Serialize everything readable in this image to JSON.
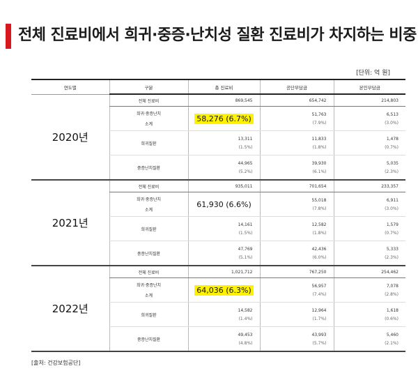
{
  "title": "전체 진료비에서 희귀·중증·난치성 질환 진료비가 차지하는 비중",
  "unit": "[단위: 억 원]",
  "headers": [
    "연도별",
    "구분",
    "총 진료비",
    "공단부담금",
    "본인부담금"
  ],
  "years": [
    {
      "year": "2020년",
      "rows": [
        {
          "label": "전체 진료비",
          "total": "869,545",
          "public": "654,742",
          "public_pct": "",
          "self": "214,803",
          "self_pct": ""
        },
        {
          "label": "희귀·중증난치",
          "label2": "소계",
          "total": "58,276 (6.7%)",
          "public": "51,763",
          "public_pct": "(7.9%)",
          "self": "6,513",
          "self_pct": "(3.0%)"
        },
        {
          "label": "희귀질환",
          "total": "13,311",
          "total_pct": "(1.5%)",
          "public": "11,833",
          "public_pct": "(1.8%)",
          "self": "1,478",
          "self_pct": "(0.7%)"
        },
        {
          "label": "중증난치질환",
          "total": "44,965",
          "total_pct": "(5.2%)",
          "public": "39,930",
          "public_pct": "(6.1%)",
          "self": "5,035",
          "self_pct": "(2.3%)"
        }
      ]
    },
    {
      "year": "2021년",
      "rows": [
        {
          "label": "전체 진료비",
          "total": "935,011",
          "public": "701,654",
          "public_pct": "",
          "self": "233,357",
          "self_pct": ""
        },
        {
          "label": "희귀·중증난치",
          "label2": "소계",
          "total": "61,930 (6.6%)",
          "public": "55,018",
          "public_pct": "(7.8%)",
          "self": "6,911",
          "self_pct": "(3.0%)"
        },
        {
          "label": "희귀질환",
          "total": "14,161",
          "total_pct": "(1.5%)",
          "public": "12,582",
          "public_pct": "(1.8%)",
          "self": "1,579",
          "self_pct": "(0.7%)"
        },
        {
          "label": "중증난치질환",
          "total": "47,769",
          "total_pct": "(5.1%)",
          "public": "42,436",
          "public_pct": "(6.0%)",
          "self": "5,333",
          "self_pct": "(2.3%)"
        }
      ]
    },
    {
      "year": "2022년",
      "rows": [
        {
          "label": "전체 진료비",
          "total": "1,021,712",
          "public": "767,250",
          "public_pct": "",
          "self": "254,462",
          "self_pct": ""
        },
        {
          "label": "희귀·중증난치",
          "label2": "소계",
          "total": "64,036 (6.3%)",
          "public": "56,957",
          "public_pct": "(7.4%)",
          "self": "7,078",
          "self_pct": "(2.8%)"
        },
        {
          "label": "희귀질환",
          "total": "14,582",
          "total_pct": "(1.4%)",
          "public": "12,964",
          "public_pct": "(1.7%)",
          "self": "1,618",
          "self_pct": "(0.6%)"
        },
        {
          "label": "중증난치질환",
          "total": "49,453",
          "total_pct": "(4.8%)",
          "public": "43,993",
          "public_pct": "(5.7%)",
          "self": "5,460",
          "self_pct": "(2.1%)"
        }
      ]
    }
  ],
  "source": "[출처: 건강보험공단]",
  "colors": {
    "accent_bar": "#d7191f",
    "highlight": "#fff200"
  }
}
